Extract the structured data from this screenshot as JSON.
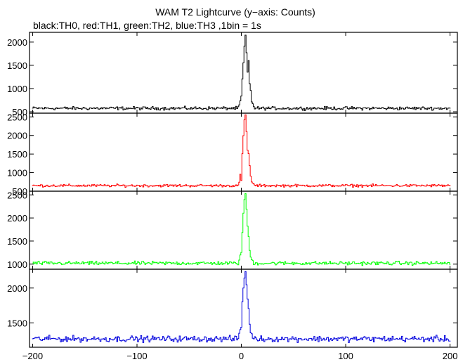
{
  "chart_data": {
    "type": "line",
    "title": "WAM T2 Lightcurve (y−axis: Counts)",
    "subtitle": "black:TH0, red:TH1, green:TH2, blue:TH3 ,1bin = 1s",
    "xlabel": "",
    "xlim": [
      -203,
      207
    ],
    "x_ticks": [
      -200,
      -100,
      0,
      100,
      200
    ],
    "x_tick_labels": [
      "−200",
      "−100",
      "0",
      "100",
      "200"
    ],
    "x_range": [
      -200,
      200
    ],
    "grid": false,
    "panels": [
      {
        "series": "TH0",
        "color": "#000000",
        "ylim": [
          470,
          2210
        ],
        "y_ticks": [
          500,
          1000,
          1500,
          2000
        ],
        "y_tick_labels": [
          "500",
          "1000",
          "1500",
          "2000"
        ],
        "baseline": 575,
        "noise": 25,
        "peak_profile": [
          {
            "x": -2,
            "y": 640
          },
          {
            "x": 0,
            "y": 830
          },
          {
            "x": 1,
            "y": 1200
          },
          {
            "x": 2,
            "y": 1550
          },
          {
            "x": 3,
            "y": 1900
          },
          {
            "x": 4,
            "y": 2150
          },
          {
            "x": 5,
            "y": 1750
          },
          {
            "x": 6,
            "y": 1350
          },
          {
            "x": 7,
            "y": 1600
          },
          {
            "x": 8,
            "y": 1100
          },
          {
            "x": 9,
            "y": 950
          },
          {
            "x": 10,
            "y": 720
          },
          {
            "x": 12,
            "y": 620
          }
        ]
      },
      {
        "series": "TH1",
        "color": "#ff0000",
        "ylim": [
          500,
          2600
        ],
        "y_ticks": [
          500,
          1000,
          1500,
          2000,
          2500
        ],
        "y_tick_labels": [
          "500",
          "1000",
          "1500",
          "2000",
          "2500"
        ],
        "baseline": 650,
        "noise": 25,
        "peak_profile": [
          {
            "x": -2,
            "y": 720
          },
          {
            "x": -1,
            "y": 950
          },
          {
            "x": 0,
            "y": 800
          },
          {
            "x": 1,
            "y": 1500
          },
          {
            "x": 2,
            "y": 2000
          },
          {
            "x": 3,
            "y": 2400
          },
          {
            "x": 4,
            "y": 2550
          },
          {
            "x": 5,
            "y": 2100
          },
          {
            "x": 6,
            "y": 1600
          },
          {
            "x": 7,
            "y": 1500
          },
          {
            "x": 8,
            "y": 1200
          },
          {
            "x": 9,
            "y": 900
          },
          {
            "x": 10,
            "y": 760
          },
          {
            "x": 12,
            "y": 680
          }
        ]
      },
      {
        "series": "TH2",
        "color": "#00ff00",
        "ylim": [
          890,
          2580
        ],
        "y_ticks": [
          1000,
          1500,
          2000,
          2500
        ],
        "y_tick_labels": [
          "1000",
          "1500",
          "2000",
          "2500"
        ],
        "baseline": 1020,
        "noise": 28,
        "peak_profile": [
          {
            "x": -2,
            "y": 1100
          },
          {
            "x": 0,
            "y": 1250
          },
          {
            "x": 1,
            "y": 1700
          },
          {
            "x": 2,
            "y": 2100
          },
          {
            "x": 3,
            "y": 2400
          },
          {
            "x": 4,
            "y": 2520
          },
          {
            "x": 5,
            "y": 2200
          },
          {
            "x": 6,
            "y": 1800
          },
          {
            "x": 7,
            "y": 1600
          },
          {
            "x": 8,
            "y": 1300
          },
          {
            "x": 9,
            "y": 1150
          },
          {
            "x": 11,
            "y": 1060
          }
        ]
      },
      {
        "series": "TH3",
        "color": "#0000dd",
        "ylim": [
          1150,
          2270
        ],
        "y_ticks": [
          1500,
          2000
        ],
        "y_tick_labels": [
          "1500",
          "2000"
        ],
        "baseline": 1270,
        "noise": 30,
        "peak_profile": [
          {
            "x": -2,
            "y": 1350
          },
          {
            "x": 0,
            "y": 1450
          },
          {
            "x": 1,
            "y": 1800
          },
          {
            "x": 2,
            "y": 2000
          },
          {
            "x": 3,
            "y": 2150
          },
          {
            "x": 4,
            "y": 2230
          },
          {
            "x": 5,
            "y": 2050
          },
          {
            "x": 6,
            "y": 1850
          },
          {
            "x": 7,
            "y": 1700
          },
          {
            "x": 8,
            "y": 1500
          },
          {
            "x": 9,
            "y": 1350
          },
          {
            "x": 11,
            "y": 1300
          }
        ]
      }
    ]
  }
}
